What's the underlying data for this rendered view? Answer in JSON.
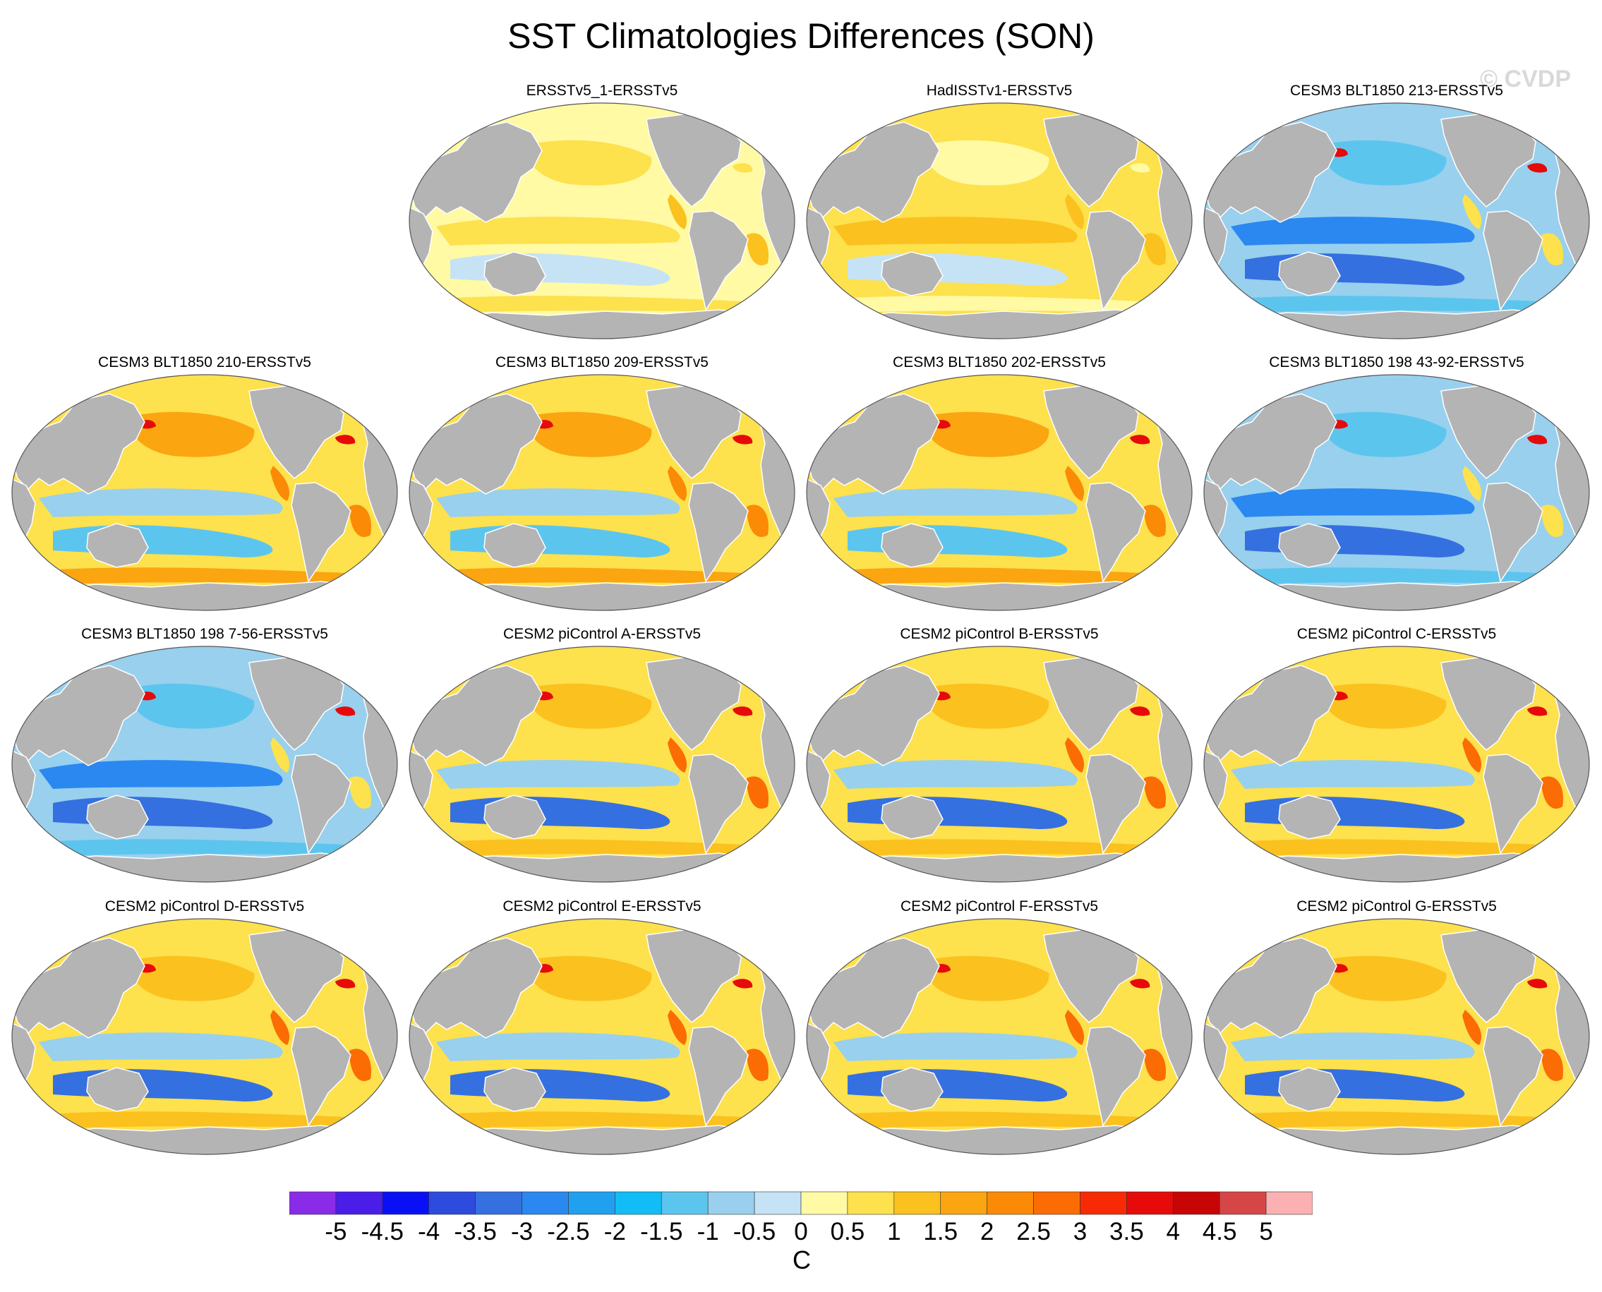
{
  "title": "SST Climatologies Differences (SON)",
  "watermark": "© CVDP",
  "colors": {
    "land": "#b4b4b4",
    "coast": "#ffffff",
    "outline": "#555555"
  },
  "panels": [
    {
      "title": "ERSSTv5_1-ERSSTv5",
      "pattern": "obs1"
    },
    {
      "title": "HadISSTv1-ERSSTv5",
      "pattern": "obs2"
    },
    {
      "title": "CESM3 BLT1850 213-ERSSTv5",
      "pattern": "cold"
    },
    {
      "title": "CESM3 BLT1850 210-ERSSTv5",
      "pattern": "mixed"
    },
    {
      "title": "CESM3 BLT1850 209-ERSSTv5",
      "pattern": "mixed"
    },
    {
      "title": "CESM3 BLT1850 202-ERSSTv5",
      "pattern": "mixed"
    },
    {
      "title": "CESM3 BLT1850 198 43-92-ERSSTv5",
      "pattern": "cold"
    },
    {
      "title": "CESM3 BLT1850 198 7-56-ERSSTv5",
      "pattern": "cold"
    },
    {
      "title": "CESM2 piControl A-ERSSTv5",
      "pattern": "warm"
    },
    {
      "title": "CESM2 piControl B-ERSSTv5",
      "pattern": "warm"
    },
    {
      "title": "CESM2 piControl C-ERSSTv5",
      "pattern": "warm"
    },
    {
      "title": "CESM2 piControl D-ERSSTv5",
      "pattern": "warm"
    },
    {
      "title": "CESM2 piControl E-ERSSTv5",
      "pattern": "warm"
    },
    {
      "title": "CESM2 piControl F-ERSSTv5",
      "pattern": "warm"
    },
    {
      "title": "CESM2 piControl G-ERSSTv5",
      "pattern": "warm"
    }
  ],
  "colorbar": {
    "labels": [
      "-5",
      "-4.5",
      "-4",
      "-3.5",
      "-3",
      "-2.5",
      "-2",
      "-1.5",
      "-1",
      "-0.5",
      "0",
      "0.5",
      "1",
      "1.5",
      "2",
      "2.5",
      "3",
      "3.5",
      "4",
      "4.5",
      "5"
    ],
    "colors": [
      "#8a2be8",
      "#4a1ee8",
      "#0a10f5",
      "#2d4bdc",
      "#3570e0",
      "#2a88f0",
      "#22a0f0",
      "#12bdf5",
      "#5cc5ee",
      "#98d0ee",
      "#c6e3f6",
      "#fffaa3",
      "#fde14d",
      "#fbc11f",
      "#fba511",
      "#fb8a06",
      "#fb6c04",
      "#f72a05",
      "#e60a0a",
      "#c80505",
      "#d64646",
      "#fbb1b1"
    ],
    "units": "C"
  }
}
